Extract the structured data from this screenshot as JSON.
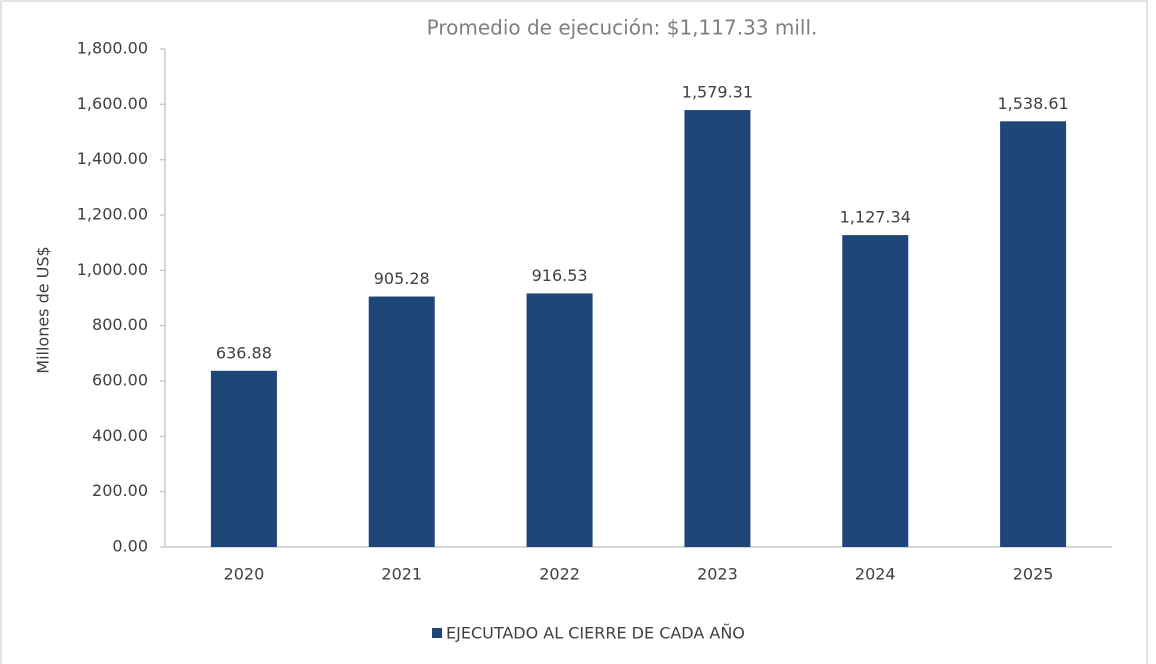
{
  "chart_data": {
    "type": "bar",
    "title": "Promedio de ejecución: $1,117.33 mill.",
    "y_label": "Millones de US$",
    "categories": [
      "2020",
      "2021",
      "2022",
      "2023",
      "2024",
      "2025"
    ],
    "series": [
      {
        "name": "EJECUTADO AL CIERRE DE CADA AÑO",
        "color": "#1f4678",
        "values": [
          636.88,
          905.28,
          916.53,
          1579.31,
          1127.34,
          1538.61
        ],
        "value_labels": [
          "636.88",
          "905.28",
          "916.53",
          "1,579.31",
          "1,127.34",
          "1,538.61"
        ]
      }
    ],
    "ylim": [
      0,
      1800
    ],
    "yticks": [
      {
        "value": 0,
        "label": "0.00"
      },
      {
        "value": 200,
        "label": "200.00"
      },
      {
        "value": 400,
        "label": "400.00"
      },
      {
        "value": 600,
        "label": "600.00"
      },
      {
        "value": 800,
        "label": "800.00"
      },
      {
        "value": 1000,
        "label": "1,000.00"
      },
      {
        "value": 1200,
        "label": "1,200.00"
      },
      {
        "value": 1400,
        "label": "1,400.00"
      },
      {
        "value": 1600,
        "label": "1,600.00"
      },
      {
        "value": 1800,
        "label": "1,800.00"
      }
    ],
    "grid": false,
    "legend": "bottom"
  }
}
